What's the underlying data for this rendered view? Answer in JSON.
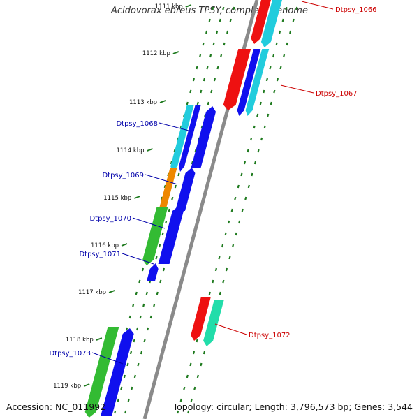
{
  "title": "Acidovorax ebreus TPSY, complete genome",
  "accession": "Accession: NC_011992",
  "topology": "Topology: circular; Length: 3,796,573 bp; Genes: 3,544",
  "ticks": [
    "1111 kbp",
    "1112 kbp",
    "1113 kbp",
    "1114 kbp",
    "1115 kbp",
    "1116 kbp",
    "1117 kbp",
    "1118 kbp",
    "1119 kbp"
  ],
  "genes": [
    {
      "name": "Dtpsy_1066",
      "color": "#cc0000"
    },
    {
      "name": "Dtpsy_1067",
      "color": "#cc0000"
    },
    {
      "name": "Dtpsy_1068",
      "color": "#0000aa"
    },
    {
      "name": "Dtpsy_1069",
      "color": "#0000aa"
    },
    {
      "name": "Dtpsy_1070",
      "color": "#0000aa"
    },
    {
      "name": "Dtpsy_1071",
      "color": "#0000aa"
    },
    {
      "name": "Dtpsy_1072",
      "color": "#cc0000"
    },
    {
      "name": "Dtpsy_1073",
      "color": "#0000aa"
    }
  ],
  "colors": {
    "backbone": "#8a8a8a",
    "tick": "#1e7a1e",
    "red": "#ee1111",
    "blue": "#1010ee",
    "green": "#33bb33",
    "cyan": "#22ccdd",
    "orange": "#ee8800",
    "teal": "#22ddaa"
  }
}
